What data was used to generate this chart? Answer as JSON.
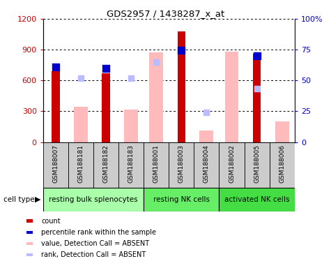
{
  "title": "GDS2957 / 1438287_x_at",
  "samples": [
    "GSM188007",
    "GSM188181",
    "GSM188182",
    "GSM188183",
    "GSM188001",
    "GSM188003",
    "GSM188004",
    "GSM188002",
    "GSM188005",
    "GSM188006"
  ],
  "cell_groups": [
    {
      "label": "resting bulk splenocytes",
      "start": 0,
      "end": 4,
      "color": "#aaffaa"
    },
    {
      "label": "resting NK cells",
      "start": 4,
      "end": 7,
      "color": "#66ee66"
    },
    {
      "label": "activated NK cells",
      "start": 7,
      "end": 10,
      "color": "#44dd44"
    }
  ],
  "count_values": [
    690,
    null,
    670,
    null,
    null,
    1080,
    null,
    null,
    860,
    null
  ],
  "percentile_rank_left": [
    730,
    null,
    720,
    null,
    null,
    895,
    null,
    null,
    840,
    null
  ],
  "absent_value": [
    null,
    345,
    null,
    315,
    870,
    null,
    110,
    880,
    null,
    200
  ],
  "absent_rank_left": [
    null,
    620,
    null,
    625,
    780,
    null,
    290,
    null,
    520,
    null
  ],
  "ylim_left": [
    0,
    1200
  ],
  "ylim_right": [
    0,
    100
  ],
  "yticks_left": [
    0,
    300,
    600,
    900,
    1200
  ],
  "yticks_right": [
    0,
    25,
    50,
    75,
    100
  ],
  "yticklabels_right": [
    "0",
    "25",
    "50",
    "75",
    "100%"
  ],
  "count_color": "#cc0000",
  "percentile_color": "#0000cc",
  "absent_value_color": "#ffbbbb",
  "absent_rank_color": "#bbbbff",
  "bg_color": "#ffffff",
  "sample_box_color": "#cccccc",
  "legend_items": [
    {
      "label": "count",
      "color": "#cc0000"
    },
    {
      "label": "percentile rank within the sample",
      "color": "#0000cc"
    },
    {
      "label": "value, Detection Call = ABSENT",
      "color": "#ffbbbb"
    },
    {
      "label": "rank, Detection Call = ABSENT",
      "color": "#bbbbff"
    }
  ]
}
